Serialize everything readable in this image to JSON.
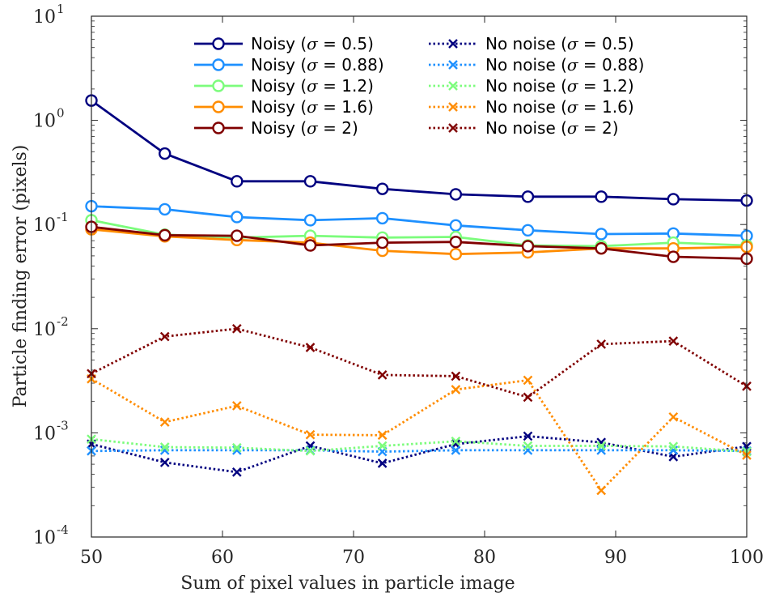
{
  "chart_data": {
    "type": "line",
    "xlabel": "Sum of pixel values in particle image",
    "ylabel": "Particle finding error (pixels)",
    "xlim": [
      50,
      100
    ],
    "ylim": [
      0.0001,
      10
    ],
    "yscale": "log",
    "xticks": [
      "50",
      "60",
      "70",
      "80",
      "90",
      "100"
    ],
    "ytick_base": "10",
    "ytick_exponents": [
      "1",
      "0",
      "-1",
      "-2",
      "-3",
      "-4"
    ],
    "legend_placement": "top",
    "x": [
      50,
      55.6,
      61.1,
      66.7,
      72.2,
      77.8,
      83.3,
      88.9,
      94.4,
      100
    ],
    "series": [
      {
        "name": "Noisy (σ = 0.5)",
        "symbol": "σ",
        "legend_prefix": "Noisy (",
        "legend_suffix": " = 0.5)",
        "color": "#000080",
        "style": "solid",
        "marker": "circle",
        "values": [
          1.55,
          0.48,
          0.26,
          0.26,
          0.22,
          0.195,
          0.185,
          0.185,
          0.175,
          0.17
        ]
      },
      {
        "name": "Noisy (σ = 0.88)",
        "symbol": "σ",
        "legend_prefix": "Noisy (",
        "legend_suffix": " = 0.88)",
        "color": "#1E90FF",
        "style": "solid",
        "marker": "circle",
        "values": [
          0.15,
          0.14,
          0.118,
          0.11,
          0.115,
          0.098,
          0.088,
          0.081,
          0.082,
          0.078
        ]
      },
      {
        "name": "Noisy (σ = 1.2)",
        "symbol": "σ",
        "legend_prefix": "Noisy (",
        "legend_suffix": " = 1.2)",
        "color": "#7CFC7C",
        "style": "solid",
        "marker": "circle",
        "values": [
          0.11,
          0.08,
          0.075,
          0.078,
          0.075,
          0.076,
          0.063,
          0.062,
          0.067,
          0.063
        ]
      },
      {
        "name": "Noisy (σ = 1.6)",
        "symbol": "σ",
        "legend_prefix": "Noisy (",
        "legend_suffix": " = 1.6)",
        "color": "#FF8C00",
        "style": "solid",
        "marker": "circle",
        "values": [
          0.09,
          0.077,
          0.071,
          0.067,
          0.056,
          0.052,
          0.054,
          0.059,
          0.059,
          0.061
        ]
      },
      {
        "name": "Noisy (σ = 2)",
        "symbol": "σ",
        "legend_prefix": "Noisy (",
        "legend_suffix": " = 2)",
        "color": "#800000",
        "style": "solid",
        "marker": "circle",
        "values": [
          0.095,
          0.079,
          0.078,
          0.063,
          0.067,
          0.068,
          0.062,
          0.059,
          0.049,
          0.047
        ]
      },
      {
        "name": "No noise (σ = 0.5)",
        "symbol": "σ",
        "legend_prefix": "No noise (",
        "legend_suffix": " = 0.5)",
        "color": "#000080",
        "style": "dotted",
        "marker": "x",
        "values": [
          0.00078,
          0.00052,
          0.00042,
          0.00075,
          0.00051,
          0.00078,
          0.00093,
          0.00081,
          0.00059,
          0.00074
        ]
      },
      {
        "name": "No noise (σ = 0.88)",
        "symbol": "σ",
        "legend_prefix": "No noise (",
        "legend_suffix": " = 0.88)",
        "color": "#1E90FF",
        "style": "dotted",
        "marker": "x",
        "values": [
          0.00067,
          0.00068,
          0.00068,
          0.00068,
          0.00066,
          0.00068,
          0.00068,
          0.00068,
          0.00068,
          0.00067
        ]
      },
      {
        "name": "No noise (σ = 1.2)",
        "symbol": "σ",
        "legend_prefix": "No noise (",
        "legend_suffix": " = 1.2)",
        "color": "#7CFC7C",
        "style": "dotted",
        "marker": "x",
        "values": [
          0.00087,
          0.00073,
          0.00072,
          0.00067,
          0.00075,
          0.00083,
          0.00075,
          0.00075,
          0.00074,
          0.00066
        ]
      },
      {
        "name": "No noise (σ = 1.6)",
        "symbol": "σ",
        "legend_prefix": "No noise (",
        "legend_suffix": " = 1.6)",
        "color": "#FF8C00",
        "style": "dotted",
        "marker": "x",
        "values": [
          0.0033,
          0.00127,
          0.00182,
          0.00096,
          0.00095,
          0.0026,
          0.0032,
          0.00028,
          0.00142,
          0.00061
        ]
      },
      {
        "name": "No noise (σ = 2)",
        "symbol": "σ",
        "legend_prefix": "No noise (",
        "legend_suffix": " = 2)",
        "color": "#800000",
        "style": "dotted",
        "marker": "x",
        "values": [
          0.0037,
          0.0084,
          0.01,
          0.0066,
          0.0036,
          0.0035,
          0.0022,
          0.0071,
          0.0076,
          0.0028
        ]
      }
    ]
  }
}
